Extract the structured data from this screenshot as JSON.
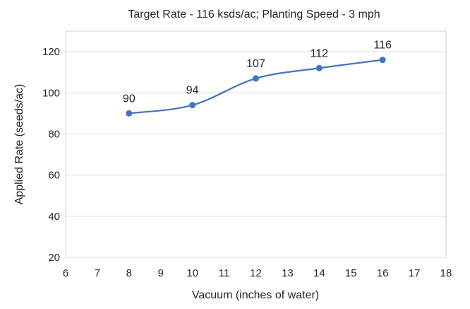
{
  "chart_data": {
    "type": "line",
    "title": "Target Rate - 116 ksds/ac; Planting Speed - 3 mph",
    "xlabel": "Vacuum (inches of water)",
    "ylabel": "Applied Rate (seeds/ac)",
    "xlim": [
      6,
      18
    ],
    "ylim": [
      20,
      130
    ],
    "x_ticks": [
      6,
      7,
      8,
      9,
      10,
      11,
      12,
      13,
      14,
      15,
      16,
      17,
      18
    ],
    "y_ticks": [
      20,
      40,
      60,
      80,
      100,
      120
    ],
    "grid": "horizontal",
    "smooth": true,
    "color": "#4472c4",
    "series": [
      {
        "x": [
          8,
          10,
          12,
          14,
          16
        ],
        "values": [
          90,
          94,
          107,
          112,
          116
        ],
        "data_labels": [
          "90",
          "94",
          "107",
          "112",
          "116"
        ]
      }
    ]
  }
}
